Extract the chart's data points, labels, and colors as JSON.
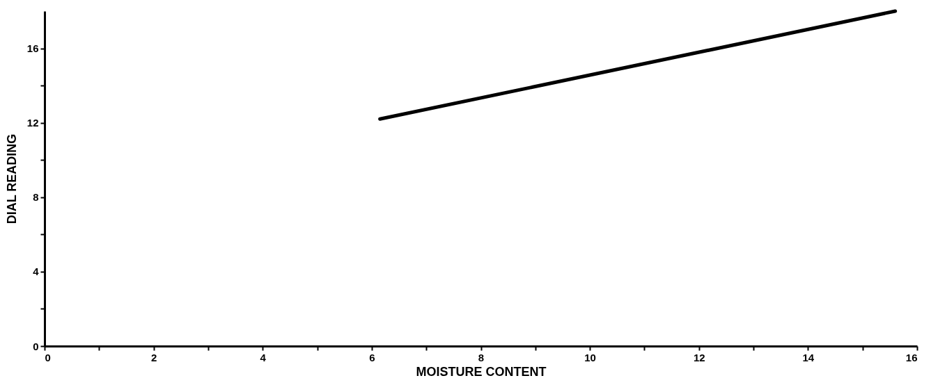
{
  "chart_data": {
    "type": "line",
    "xlabel": "MOISTURE CONTENT",
    "ylabel": "DIAL READING",
    "series": [
      {
        "color": "#000000",
        "x": [
          6.15,
          15.6
        ],
        "values": [
          12.2,
          18.0
        ]
      }
    ],
    "xlim": [
      0,
      16
    ],
    "ylim": [
      0,
      18
    ],
    "xticks": [
      0,
      {
        "value": 1,
        "label": null
      },
      2,
      {
        "value": 3,
        "label": null
      },
      4,
      {
        "value": 5,
        "label": null
      },
      6,
      {
        "value": 7,
        "label": null
      },
      8,
      {
        "value": 9,
        "label": null
      },
      10,
      {
        "value": 11,
        "label": null
      },
      12,
      {
        "value": 13,
        "label": null
      },
      14,
      {
        "value": 15,
        "label": null
      },
      16
    ],
    "yticks": [
      0,
      {
        "value": 2,
        "label": null
      },
      4,
      {
        "value": 6,
        "label": null
      },
      8,
      {
        "value": 10,
        "label": null
      },
      12,
      {
        "value": 14,
        "label": null
      },
      16
    ],
    "grid": false,
    "marker": "none",
    "line_style": "solid"
  }
}
